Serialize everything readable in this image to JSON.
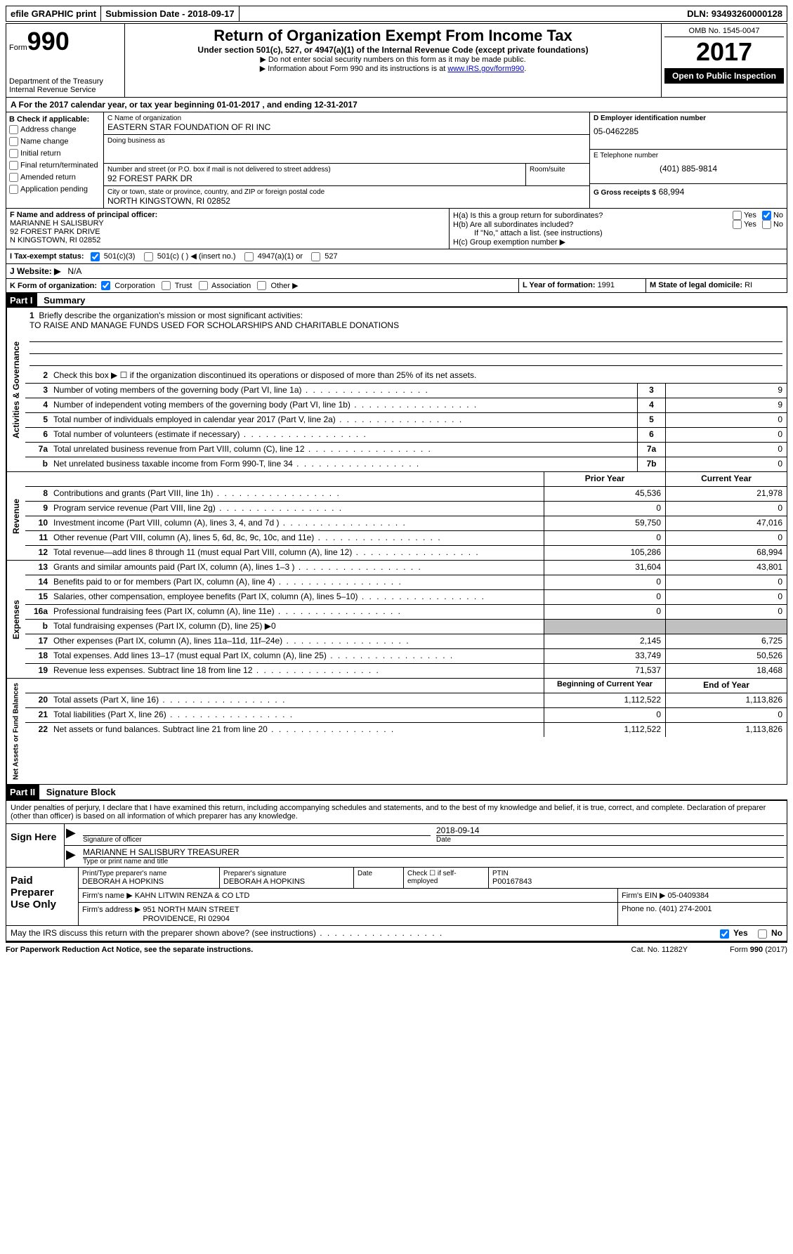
{
  "topbar": {
    "efile": "efile GRAPHIC print",
    "submission_label": "Submission Date",
    "submission_date": "2018-09-17",
    "dln_label": "DLN:",
    "dln": "93493260000128"
  },
  "header": {
    "form_word": "Form",
    "form_number": "990",
    "dept1": "Department of the Treasury",
    "dept2": "Internal Revenue Service",
    "title": "Return of Organization Exempt From Income Tax",
    "subtitle": "Under section 501(c), 527, or 4947(a)(1) of the Internal Revenue Code (except private foundations)",
    "note1": "▶ Do not enter social security numbers on this form as it may be made public.",
    "note2_pre": "▶ Information about Form 990 and its instructions is at ",
    "note2_link": "www.IRS.gov/form990",
    "omb": "OMB No. 1545-0047",
    "year": "2017",
    "inspection": "Open to Public Inspection"
  },
  "section_a": "A  For the 2017 calendar year, or tax year beginning 01-01-2017   , and ending 12-31-2017",
  "section_b": {
    "title": "B Check if applicable:",
    "opts": [
      "Address change",
      "Name change",
      "Initial return",
      "Final return/terminated",
      "Amended return",
      "Application pending"
    ]
  },
  "section_c": {
    "name_label": "C Name of organization",
    "name": "EASTERN STAR FOUNDATION OF RI INC",
    "dba_label": "Doing business as",
    "dba": "",
    "street_label": "Number and street (or P.O. box if mail is not delivered to street address)",
    "room_label": "Room/suite",
    "street": "92 FOREST PARK DR",
    "city_label": "City or town, state or province, country, and ZIP or foreign postal code",
    "city": "NORTH KINGSTOWN, RI  02852"
  },
  "section_d": {
    "label": "D Employer identification number",
    "value": "05-0462285"
  },
  "section_e": {
    "label": "E Telephone number",
    "value": "(401) 885-9814"
  },
  "section_g": {
    "label": "G Gross receipts $",
    "value": "68,994"
  },
  "section_f": {
    "label": "F  Name and address of principal officer:",
    "line1": "MARIANNE H SALISBURY",
    "line2": "92 FOREST PARK DRIVE",
    "line3": "N KINGSTOWN, RI  02852"
  },
  "section_h": {
    "a": "H(a)  Is this a group return for subordinates?",
    "b": "H(b)  Are all subordinates included?",
    "b_note": "If \"No,\" attach a list. (see instructions)",
    "c": "H(c)  Group exemption number ▶",
    "yes": "Yes",
    "no": "No"
  },
  "section_i": {
    "label": "I  Tax-exempt status:",
    "o1": "501(c)(3)",
    "o2": "501(c) (  ) ◀ (insert no.)",
    "o3": "4947(a)(1) or",
    "o4": "527"
  },
  "section_j": {
    "label": "J  Website: ▶",
    "value": "N/A"
  },
  "section_k": {
    "label": "K Form of organization:",
    "o1": "Corporation",
    "o2": "Trust",
    "o3": "Association",
    "o4": "Other ▶"
  },
  "section_l": {
    "label": "L Year of formation:",
    "value": "1991"
  },
  "section_m": {
    "label": "M State of legal domicile:",
    "value": "RI"
  },
  "part1": {
    "header": "Part I",
    "title": "Summary",
    "q1_label": "Briefly describe the organization's mission or most significant activities:",
    "q1_value": "TO RAISE AND MANAGE FUNDS USED FOR SCHOLARSHIPS AND CHARITABLE DONATIONS",
    "q2": "Check this box ▶ ☐  if the organization discontinued its operations or disposed of more than 25% of its net assets.",
    "side_governance": "Activities & Governance",
    "side_revenue": "Revenue",
    "side_expenses": "Expenses",
    "side_netassets": "Net Assets or Fund Balances",
    "prior_year": "Prior Year",
    "current_year": "Current Year",
    "beg_year": "Beginning of Current Year",
    "end_year": "End of Year",
    "lines_gov": [
      {
        "n": "3",
        "d": "Number of voting members of the governing body (Part VI, line 1a)",
        "c": "3",
        "v": "9"
      },
      {
        "n": "4",
        "d": "Number of independent voting members of the governing body (Part VI, line 1b)",
        "c": "4",
        "v": "9"
      },
      {
        "n": "5",
        "d": "Total number of individuals employed in calendar year 2017 (Part V, line 2a)",
        "c": "5",
        "v": "0"
      },
      {
        "n": "6",
        "d": "Total number of volunteers (estimate if necessary)",
        "c": "6",
        "v": "0"
      },
      {
        "n": "7a",
        "d": "Total unrelated business revenue from Part VIII, column (C), line 12",
        "c": "7a",
        "v": "0"
      },
      {
        "n": "b",
        "d": "Net unrelated business taxable income from Form 990-T, line 34",
        "c": "7b",
        "v": "0"
      }
    ],
    "lines_rev": [
      {
        "n": "8",
        "d": "Contributions and grants (Part VIII, line 1h)",
        "p": "45,536",
        "c": "21,978"
      },
      {
        "n": "9",
        "d": "Program service revenue (Part VIII, line 2g)",
        "p": "0",
        "c": "0"
      },
      {
        "n": "10",
        "d": "Investment income (Part VIII, column (A), lines 3, 4, and 7d )",
        "p": "59,750",
        "c": "47,016"
      },
      {
        "n": "11",
        "d": "Other revenue (Part VIII, column (A), lines 5, 6d, 8c, 9c, 10c, and 11e)",
        "p": "0",
        "c": "0"
      },
      {
        "n": "12",
        "d": "Total revenue—add lines 8 through 11 (must equal Part VIII, column (A), line 12)",
        "p": "105,286",
        "c": "68,994"
      }
    ],
    "lines_exp": [
      {
        "n": "13",
        "d": "Grants and similar amounts paid (Part IX, column (A), lines 1–3 )",
        "p": "31,604",
        "c": "43,801"
      },
      {
        "n": "14",
        "d": "Benefits paid to or for members (Part IX, column (A), line 4)",
        "p": "0",
        "c": "0"
      },
      {
        "n": "15",
        "d": "Salaries, other compensation, employee benefits (Part IX, column (A), lines 5–10)",
        "p": "0",
        "c": "0"
      },
      {
        "n": "16a",
        "d": "Professional fundraising fees (Part IX, column (A), line 11e)",
        "p": "0",
        "c": "0"
      },
      {
        "n": "b",
        "d": "Total fundraising expenses (Part IX, column (D), line 25) ▶0",
        "p": "",
        "c": "",
        "shaded": true
      },
      {
        "n": "17",
        "d": "Other expenses (Part IX, column (A), lines 11a–11d, 11f–24e)",
        "p": "2,145",
        "c": "6,725"
      },
      {
        "n": "18",
        "d": "Total expenses. Add lines 13–17 (must equal Part IX, column (A), line 25)",
        "p": "33,749",
        "c": "50,526"
      },
      {
        "n": "19",
        "d": "Revenue less expenses. Subtract line 18 from line 12",
        "p": "71,537",
        "c": "18,468"
      }
    ],
    "lines_net": [
      {
        "n": "20",
        "d": "Total assets (Part X, line 16)",
        "p": "1,112,522",
        "c": "1,113,826"
      },
      {
        "n": "21",
        "d": "Total liabilities (Part X, line 26)",
        "p": "0",
        "c": "0"
      },
      {
        "n": "22",
        "d": "Net assets or fund balances. Subtract line 21 from line 20",
        "p": "1,112,522",
        "c": "1,113,826"
      }
    ]
  },
  "part2": {
    "header": "Part II",
    "title": "Signature Block",
    "perjury": "Under penalties of perjury, I declare that I have examined this return, including accompanying schedules and statements, and to the best of my knowledge and belief, it is true, correct, and complete. Declaration of preparer (other than officer) is based on all information of which preparer has any knowledge.",
    "sign_here": "Sign Here",
    "sig_officer_label": "Signature of officer",
    "sig_date": "2018-09-14",
    "date_label": "Date",
    "name_title_label": "Type or print name and title",
    "name_title": "MARIANNE H SALISBURY TREASURER",
    "paid_prep": "Paid Preparer Use Only",
    "prep_name_label": "Print/Type preparer's name",
    "prep_name": "DEBORAH A HOPKINS",
    "prep_sig_label": "Preparer's signature",
    "prep_sig": "DEBORAH A HOPKINS",
    "prep_date_label": "Date",
    "self_emp": "Check ☐ if self-employed",
    "ptin_label": "PTIN",
    "ptin": "P00167843",
    "firm_name_label": "Firm's name    ▶",
    "firm_name": "KAHN LITWIN RENZA & CO LTD",
    "firm_ein_label": "Firm's EIN ▶",
    "firm_ein": "05-0409384",
    "firm_addr_label": "Firm's address ▶",
    "firm_addr1": "951 NORTH MAIN STREET",
    "firm_addr2": "PROVIDENCE, RI  02904",
    "firm_phone_label": "Phone no.",
    "firm_phone": "(401) 274-2001",
    "discuss": "May the IRS discuss this return with the preparer shown above? (see instructions)",
    "yes": "Yes",
    "no": "No"
  },
  "footer": {
    "pra": "For Paperwork Reduction Act Notice, see the separate instructions.",
    "cat": "Cat. No. 11282Y",
    "form": "Form 990 (2017)"
  }
}
